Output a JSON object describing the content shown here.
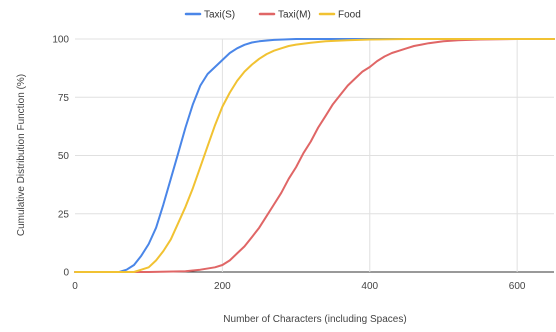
{
  "chart_data": {
    "type": "line",
    "xlabel": "Number of Characters (including Spaces)",
    "ylabel": "Cumulative Distribution Function (%)",
    "xlim": [
      0,
      650
    ],
    "ylim": [
      0,
      100
    ],
    "x_ticks": [
      0,
      200,
      400,
      600
    ],
    "y_ticks": [
      0,
      25,
      50,
      75,
      100
    ],
    "grid": true,
    "legend_position": "top",
    "series": [
      {
        "name": "Taxi(S)",
        "color": "#4a86e8",
        "points": [
          [
            0,
            0
          ],
          [
            60,
            0
          ],
          [
            70,
            1
          ],
          [
            80,
            3
          ],
          [
            90,
            7
          ],
          [
            100,
            12
          ],
          [
            110,
            19
          ],
          [
            120,
            29
          ],
          [
            130,
            40
          ],
          [
            140,
            51
          ],
          [
            150,
            62
          ],
          [
            160,
            72
          ],
          [
            170,
            80
          ],
          [
            180,
            85
          ],
          [
            190,
            88
          ],
          [
            200,
            91
          ],
          [
            210,
            94
          ],
          [
            220,
            96
          ],
          [
            230,
            97.5
          ],
          [
            240,
            98.5
          ],
          [
            250,
            99
          ],
          [
            270,
            99.6
          ],
          [
            300,
            100
          ],
          [
            650,
            100
          ]
        ]
      },
      {
        "name": "Taxi(M)",
        "color": "#e06666",
        "points": [
          [
            0,
            0
          ],
          [
            100,
            0
          ],
          [
            150,
            0.3
          ],
          [
            170,
            1
          ],
          [
            190,
            2
          ],
          [
            200,
            3
          ],
          [
            210,
            5
          ],
          [
            220,
            8
          ],
          [
            230,
            11
          ],
          [
            240,
            15
          ],
          [
            250,
            19
          ],
          [
            260,
            24
          ],
          [
            270,
            29
          ],
          [
            280,
            34
          ],
          [
            290,
            40
          ],
          [
            300,
            45
          ],
          [
            310,
            51
          ],
          [
            320,
            56
          ],
          [
            330,
            62
          ],
          [
            340,
            67
          ],
          [
            350,
            72
          ],
          [
            360,
            76
          ],
          [
            370,
            80
          ],
          [
            380,
            83
          ],
          [
            390,
            86
          ],
          [
            400,
            88
          ],
          [
            410,
            90.5
          ],
          [
            420,
            92.5
          ],
          [
            430,
            94
          ],
          [
            440,
            95
          ],
          [
            450,
            96
          ],
          [
            460,
            97
          ],
          [
            470,
            97.6
          ],
          [
            480,
            98.2
          ],
          [
            500,
            99
          ],
          [
            520,
            99.5
          ],
          [
            550,
            99.8
          ],
          [
            600,
            100
          ],
          [
            650,
            100
          ]
        ]
      },
      {
        "name": "Food",
        "color": "#f1c232",
        "points": [
          [
            0,
            0
          ],
          [
            80,
            0
          ],
          [
            90,
            1
          ],
          [
            100,
            2
          ],
          [
            110,
            5
          ],
          [
            120,
            9
          ],
          [
            130,
            14
          ],
          [
            140,
            21
          ],
          [
            150,
            28
          ],
          [
            160,
            36
          ],
          [
            170,
            45
          ],
          [
            180,
            54
          ],
          [
            190,
            63
          ],
          [
            200,
            71
          ],
          [
            210,
            77
          ],
          [
            220,
            82
          ],
          [
            230,
            86
          ],
          [
            240,
            89
          ],
          [
            250,
            91.5
          ],
          [
            260,
            93.5
          ],
          [
            270,
            95
          ],
          [
            280,
            96
          ],
          [
            290,
            97
          ],
          [
            300,
            97.6
          ],
          [
            320,
            98.4
          ],
          [
            340,
            99
          ],
          [
            370,
            99.5
          ],
          [
            400,
            99.8
          ],
          [
            450,
            100
          ],
          [
            650,
            100
          ]
        ]
      }
    ]
  }
}
